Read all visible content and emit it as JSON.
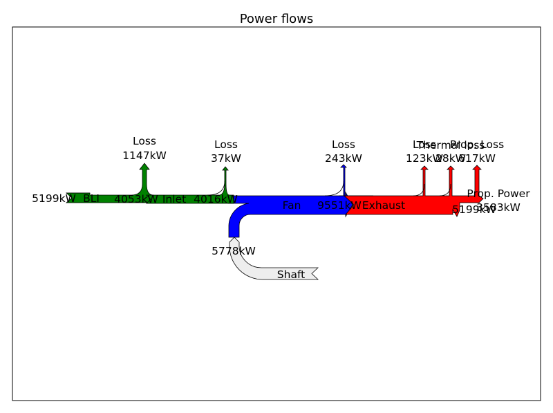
{
  "chart_data": {
    "type": "sankey",
    "title": "Power flows",
    "unit": "kW",
    "colors": {
      "bli": "#008000",
      "inlet": "#008000",
      "fan": "#0000ff",
      "exhaust": "#ff0000",
      "shaft": "#eeeeee"
    },
    "nodes": [
      {
        "id": "bli",
        "name": "BLI",
        "color": "#008000",
        "flows": [
          {
            "label": "",
            "value": "5199kW",
            "direction": "in"
          },
          {
            "label": "Loss",
            "value": "1147kW",
            "direction": "out-up"
          },
          {
            "label": "",
            "value": "4053kW",
            "direction": "out"
          }
        ]
      },
      {
        "id": "inlet",
        "name": "Inlet",
        "color": "#008000",
        "flows": [
          {
            "label": "",
            "value": "4053kW",
            "direction": "in"
          },
          {
            "label": "Loss",
            "value": "37kW",
            "direction": "out-up"
          },
          {
            "label": "",
            "value": "4016kW",
            "direction": "out"
          }
        ]
      },
      {
        "id": "fan",
        "name": "Fan",
        "color": "#0000ff",
        "flows": [
          {
            "label": "",
            "value": "4016kW",
            "direction": "in"
          },
          {
            "label": "",
            "value": "5778kW",
            "direction": "in-down"
          },
          {
            "label": "Loss",
            "value": "243kW",
            "direction": "out-up"
          },
          {
            "label": "",
            "value": "9551kW",
            "direction": "out"
          }
        ]
      },
      {
        "id": "exhaust",
        "name": "Exhaust",
        "color": "#ff0000",
        "flows": [
          {
            "label": "",
            "value": "9551kW",
            "direction": "in"
          },
          {
            "label": "Loss",
            "value": "123kW",
            "direction": "out-up"
          },
          {
            "label": "Thermal loss",
            "value": "28kW",
            "direction": "out-up"
          },
          {
            "label": "Prop. Loss",
            "value": "617kW",
            "direction": "out-up"
          },
          {
            "label": "Prop. Power",
            "value": "3583kW",
            "direction": "out"
          },
          {
            "label": "",
            "value": "5199kW",
            "direction": "out"
          }
        ]
      },
      {
        "id": "shaft",
        "name": "Shaft",
        "color": "#eeeeee",
        "flows": [
          {
            "label": "",
            "value": "5778kW",
            "direction": "out"
          }
        ]
      }
    ]
  }
}
